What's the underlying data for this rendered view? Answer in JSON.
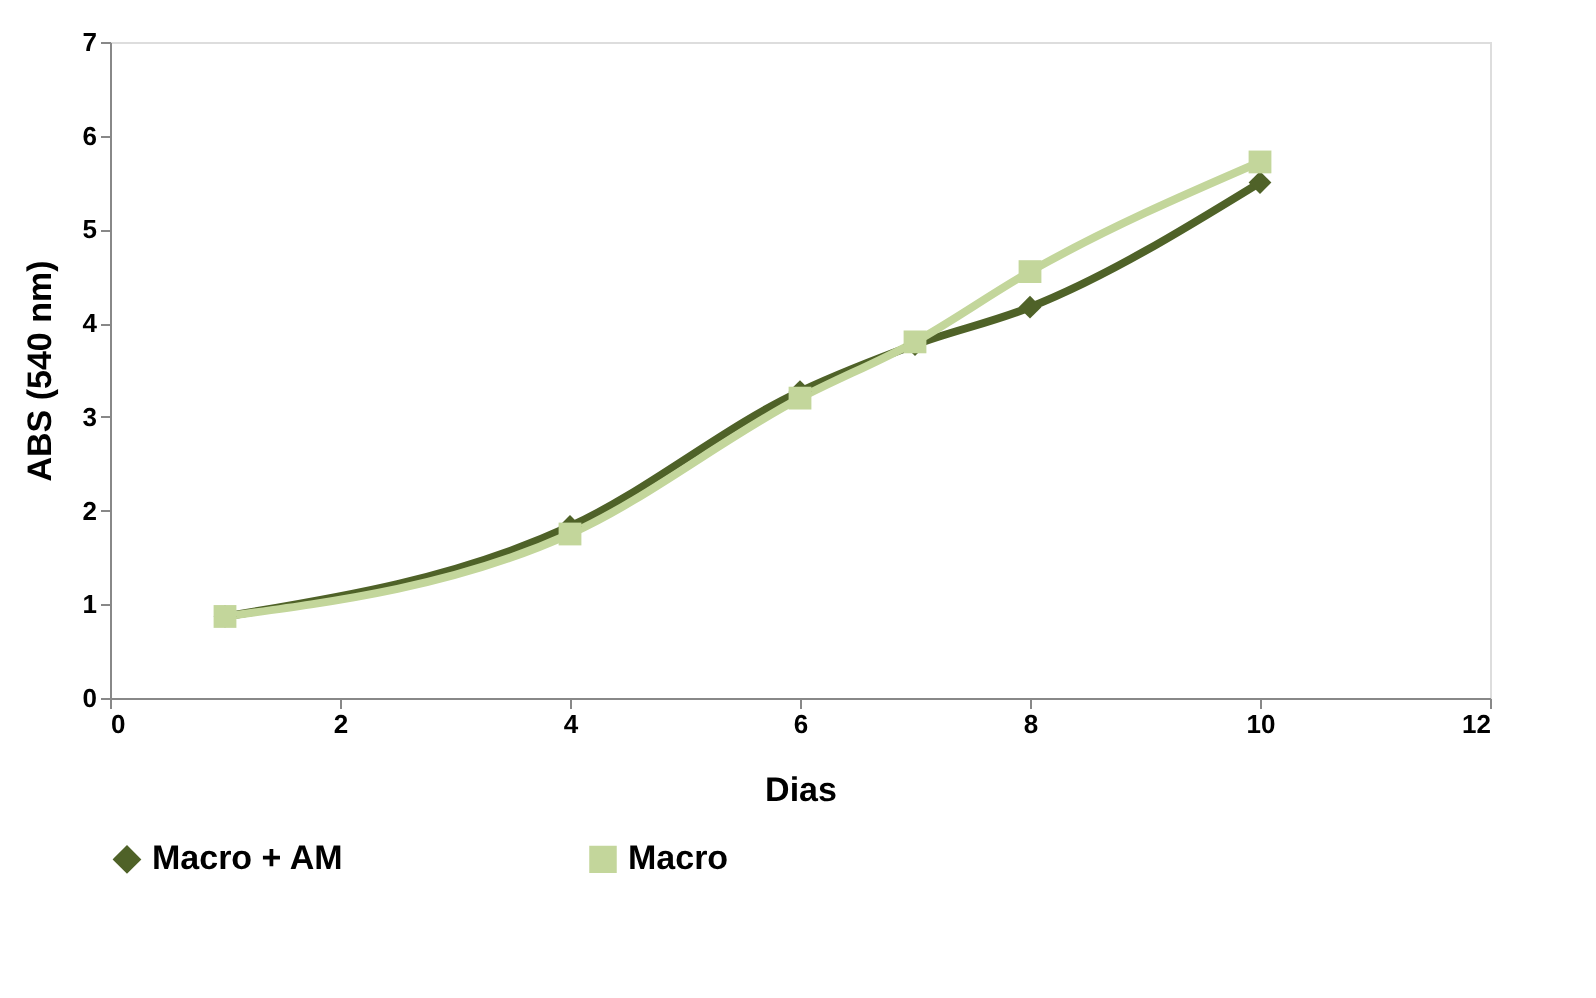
{
  "chart_data": {
    "type": "line",
    "xlabel": "Dias",
    "ylabel": "ABS (540 nm)",
    "x": [
      1,
      4,
      6,
      7,
      8,
      10
    ],
    "series": [
      {
        "name": "Macro + AM",
        "color": "#4f6228",
        "marker": "diamond",
        "values": [
          0.87,
          1.83,
          3.27,
          3.77,
          4.17,
          5.5
        ]
      },
      {
        "name": "Macro",
        "color": "#c3d69b",
        "marker": "square",
        "values": [
          0.87,
          1.75,
          3.2,
          3.8,
          4.55,
          5.72
        ]
      }
    ],
    "xlim": [
      0,
      12
    ],
    "xticks": [
      0,
      2,
      4,
      6,
      8,
      10,
      12
    ],
    "ylim": [
      0,
      7
    ],
    "yticks": [
      0,
      1,
      2,
      3,
      4,
      5,
      6,
      7
    ],
    "grid": false,
    "legend": "bottom",
    "line_style": "solid"
  }
}
